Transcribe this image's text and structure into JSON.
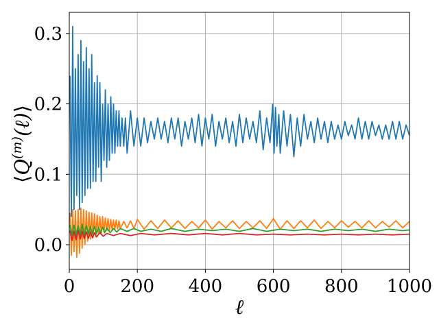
{
  "chart_data": {
    "type": "line",
    "title": "",
    "xlabel": "ℓ",
    "ylabel": "⟨Q(m)(ℓ)⟩",
    "ylabel_parts": {
      "open": "⟨",
      "q": "Q",
      "sup": "(m)",
      "arg": "(ℓ)",
      "close": "⟩"
    },
    "xlim": [
      0,
      1000
    ],
    "ylim": [
      -0.035,
      0.33
    ],
    "grid": true,
    "legend": "none",
    "xticks": [
      {
        "value": 0,
        "label": "0"
      },
      {
        "value": 200,
        "label": "200"
      },
      {
        "value": 400,
        "label": "400"
      },
      {
        "value": 600,
        "label": "600"
      },
      {
        "value": 800,
        "label": "800"
      },
      {
        "value": 1000,
        "label": "1000"
      }
    ],
    "yticks": [
      {
        "value": 0.0,
        "label": "0.0"
      },
      {
        "value": 0.1,
        "label": "0.1"
      },
      {
        "value": 0.2,
        "label": "0.2"
      },
      {
        "value": 0.3,
        "label": "0.3"
      }
    ],
    "series": [
      {
        "color": "#1f77b4",
        "x": [
          2,
          6,
          10,
          14,
          18,
          22,
          26,
          30,
          34,
          38,
          42,
          46,
          50,
          54,
          58,
          62,
          66,
          70,
          74,
          78,
          82,
          86,
          90,
          94,
          98,
          102,
          106,
          110,
          114,
          118,
          122,
          126,
          130,
          134,
          138,
          142,
          146,
          150,
          155,
          160,
          165,
          170,
          180,
          190,
          200,
          210,
          220,
          230,
          240,
          250,
          260,
          270,
          280,
          290,
          300,
          310,
          320,
          330,
          340,
          350,
          360,
          370,
          380,
          390,
          400,
          410,
          420,
          430,
          440,
          450,
          460,
          470,
          480,
          490,
          500,
          510,
          520,
          530,
          540,
          550,
          560,
          570,
          580,
          590,
          598,
          602,
          606,
          610,
          616,
          620,
          630,
          640,
          650,
          660,
          670,
          680,
          690,
          700,
          710,
          720,
          730,
          740,
          750,
          760,
          770,
          780,
          790,
          800,
          810,
          820,
          830,
          840,
          850,
          860,
          870,
          880,
          890,
          900,
          910,
          920,
          930,
          940,
          950,
          960,
          970,
          980,
          990,
          1000
        ],
        "y": [
          0.24,
          0.04,
          0.31,
          0.05,
          0.25,
          0.07,
          0.27,
          0.05,
          0.29,
          0.06,
          0.26,
          0.07,
          0.28,
          0.08,
          0.25,
          0.08,
          0.27,
          0.09,
          0.23,
          0.09,
          0.24,
          0.11,
          0.23,
          0.09,
          0.2,
          0.12,
          0.22,
          0.11,
          0.2,
          0.12,
          0.21,
          0.13,
          0.2,
          0.13,
          0.19,
          0.14,
          0.19,
          0.14,
          0.18,
          0.14,
          0.18,
          0.13,
          0.19,
          0.14,
          0.18,
          0.14,
          0.18,
          0.145,
          0.175,
          0.15,
          0.18,
          0.15,
          0.175,
          0.145,
          0.18,
          0.15,
          0.18,
          0.14,
          0.175,
          0.15,
          0.18,
          0.145,
          0.185,
          0.14,
          0.18,
          0.15,
          0.185,
          0.14,
          0.175,
          0.15,
          0.18,
          0.145,
          0.175,
          0.14,
          0.185,
          0.145,
          0.18,
          0.15,
          0.175,
          0.145,
          0.19,
          0.135,
          0.18,
          0.145,
          0.2,
          0.13,
          0.195,
          0.14,
          0.185,
          0.13,
          0.19,
          0.14,
          0.185,
          0.125,
          0.18,
          0.14,
          0.185,
          0.15,
          0.175,
          0.145,
          0.18,
          0.15,
          0.175,
          0.145,
          0.175,
          0.15,
          0.17,
          0.15,
          0.175,
          0.155,
          0.17,
          0.15,
          0.18,
          0.15,
          0.175,
          0.15,
          0.175,
          0.155,
          0.17,
          0.15,
          0.17,
          0.15,
          0.175,
          0.15,
          0.175,
          0.15,
          0.17,
          0.155
        ]
      },
      {
        "color": "#ff7f0e",
        "x": [
          2,
          6,
          10,
          14,
          18,
          22,
          26,
          30,
          34,
          38,
          42,
          46,
          50,
          54,
          58,
          62,
          66,
          70,
          74,
          78,
          82,
          86,
          90,
          94,
          98,
          102,
          106,
          110,
          114,
          118,
          122,
          126,
          130,
          134,
          138,
          142,
          146,
          150,
          160,
          170,
          180,
          190,
          200,
          220,
          240,
          260,
          280,
          300,
          320,
          340,
          360,
          380,
          400,
          420,
          440,
          460,
          480,
          500,
          520,
          540,
          560,
          580,
          600,
          620,
          640,
          660,
          680,
          700,
          720,
          740,
          760,
          780,
          800,
          820,
          840,
          860,
          880,
          900,
          920,
          940,
          960,
          980,
          1000
        ],
        "y": [
          0.045,
          -0.015,
          0.05,
          -0.01,
          0.048,
          -0.018,
          0.05,
          -0.012,
          0.052,
          -0.005,
          0.05,
          0.0,
          0.048,
          0.005,
          0.046,
          0.008,
          0.045,
          0.01,
          0.044,
          0.012,
          0.042,
          0.015,
          0.04,
          0.016,
          0.04,
          0.018,
          0.038,
          0.02,
          0.037,
          0.02,
          0.036,
          0.021,
          0.035,
          0.022,
          0.035,
          0.022,
          0.034,
          0.023,
          0.033,
          0.024,
          0.034,
          0.023,
          0.036,
          0.022,
          0.034,
          0.023,
          0.035,
          0.024,
          0.034,
          0.023,
          0.033,
          0.024,
          0.035,
          0.022,
          0.033,
          0.024,
          0.034,
          0.023,
          0.033,
          0.024,
          0.034,
          0.023,
          0.037,
          0.022,
          0.034,
          0.023,
          0.034,
          0.024,
          0.035,
          0.023,
          0.033,
          0.024,
          0.034,
          0.025,
          0.033,
          0.024,
          0.034,
          0.024,
          0.033,
          0.025,
          0.034,
          0.024,
          0.033
        ]
      },
      {
        "color": "#2ca02c",
        "x": [
          2,
          8,
          14,
          20,
          26,
          32,
          38,
          44,
          50,
          56,
          62,
          68,
          74,
          80,
          86,
          92,
          98,
          104,
          110,
          120,
          130,
          140,
          150,
          170,
          190,
          210,
          240,
          270,
          300,
          340,
          380,
          420,
          460,
          500,
          540,
          580,
          620,
          660,
          700,
          740,
          780,
          820,
          860,
          900,
          940,
          980,
          1000
        ],
        "y": [
          0.028,
          0.014,
          0.028,
          0.013,
          0.027,
          0.014,
          0.029,
          0.013,
          0.027,
          0.015,
          0.026,
          0.015,
          0.026,
          0.016,
          0.025,
          0.016,
          0.025,
          0.017,
          0.024,
          0.017,
          0.023,
          0.018,
          0.023,
          0.019,
          0.023,
          0.019,
          0.022,
          0.019,
          0.023,
          0.019,
          0.022,
          0.02,
          0.022,
          0.019,
          0.023,
          0.019,
          0.022,
          0.02,
          0.022,
          0.019,
          0.022,
          0.02,
          0.022,
          0.019,
          0.022,
          0.02,
          0.021
        ]
      },
      {
        "color": "#d62728",
        "x": [
          2,
          8,
          14,
          20,
          26,
          32,
          38,
          44,
          50,
          56,
          62,
          68,
          74,
          80,
          90,
          100,
          110,
          130,
          150,
          180,
          210,
          250,
          300,
          350,
          400,
          450,
          500,
          550,
          600,
          650,
          700,
          750,
          800,
          850,
          900,
          950,
          1000
        ],
        "y": [
          0.02,
          0.006,
          0.019,
          0.007,
          0.02,
          0.008,
          0.019,
          0.009,
          0.018,
          0.009,
          0.018,
          0.01,
          0.017,
          0.011,
          0.017,
          0.012,
          0.016,
          0.013,
          0.016,
          0.013,
          0.016,
          0.014,
          0.016,
          0.014,
          0.016,
          0.014,
          0.016,
          0.014,
          0.015,
          0.014,
          0.015,
          0.014,
          0.015,
          0.014,
          0.015,
          0.014,
          0.015
        ]
      }
    ]
  }
}
